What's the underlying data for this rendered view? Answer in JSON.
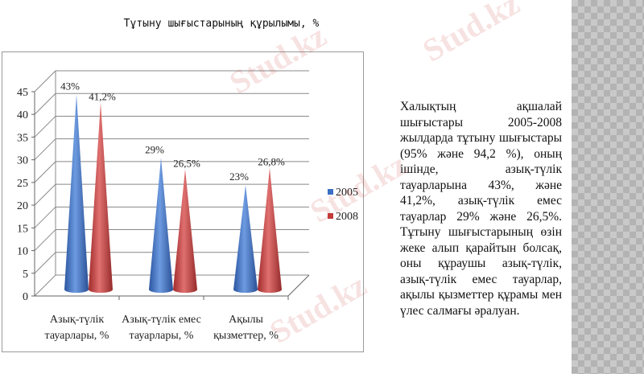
{
  "slide": {
    "title": "Тұтыну шығыстарының құрылымы, %",
    "body_text": "Халықтың ақшалай шығыстары 2005-2008 жылдарда тұтыну шығыстары (95% және 94,2 %), оның ішінде, азық-түлік тауарларына 43%, және 41,2%, азық-түлік емес тауарлар 29% және 26,5%. Тұтыну шығыстарының өзін жеке алып қарайтын болсақ, оны құраушы азық-түлік, азық-түлік емес тауарлар, ақылы қызметтер құрамы мен үлес салмағы әралуан.",
    "watermark": "Stud.kz"
  },
  "chart_data": {
    "type": "bar",
    "style": "3d-cone",
    "categories": [
      [
        "Азық-түлік",
        "тауарлары, %"
      ],
      [
        "Азық-түлік емес",
        "тауарлары, %"
      ],
      [
        "Ақылы",
        "қызметтер, %"
      ]
    ],
    "series": [
      {
        "name": "2005",
        "color": "#3b6fc4",
        "values": [
          43,
          29,
          23
        ],
        "labels": [
          "43%",
          "29%",
          "23%"
        ]
      },
      {
        "name": "2008",
        "color": "#c43b3b",
        "values": [
          41.2,
          26.5,
          26.8
        ],
        "labels": [
          "41,2%",
          "26,5%",
          "26,8%"
        ]
      }
    ],
    "ylim": [
      0,
      45
    ],
    "yticks": [
      0,
      5,
      10,
      15,
      20,
      25,
      30,
      35,
      40,
      45
    ],
    "grid": true,
    "legend": "right"
  }
}
